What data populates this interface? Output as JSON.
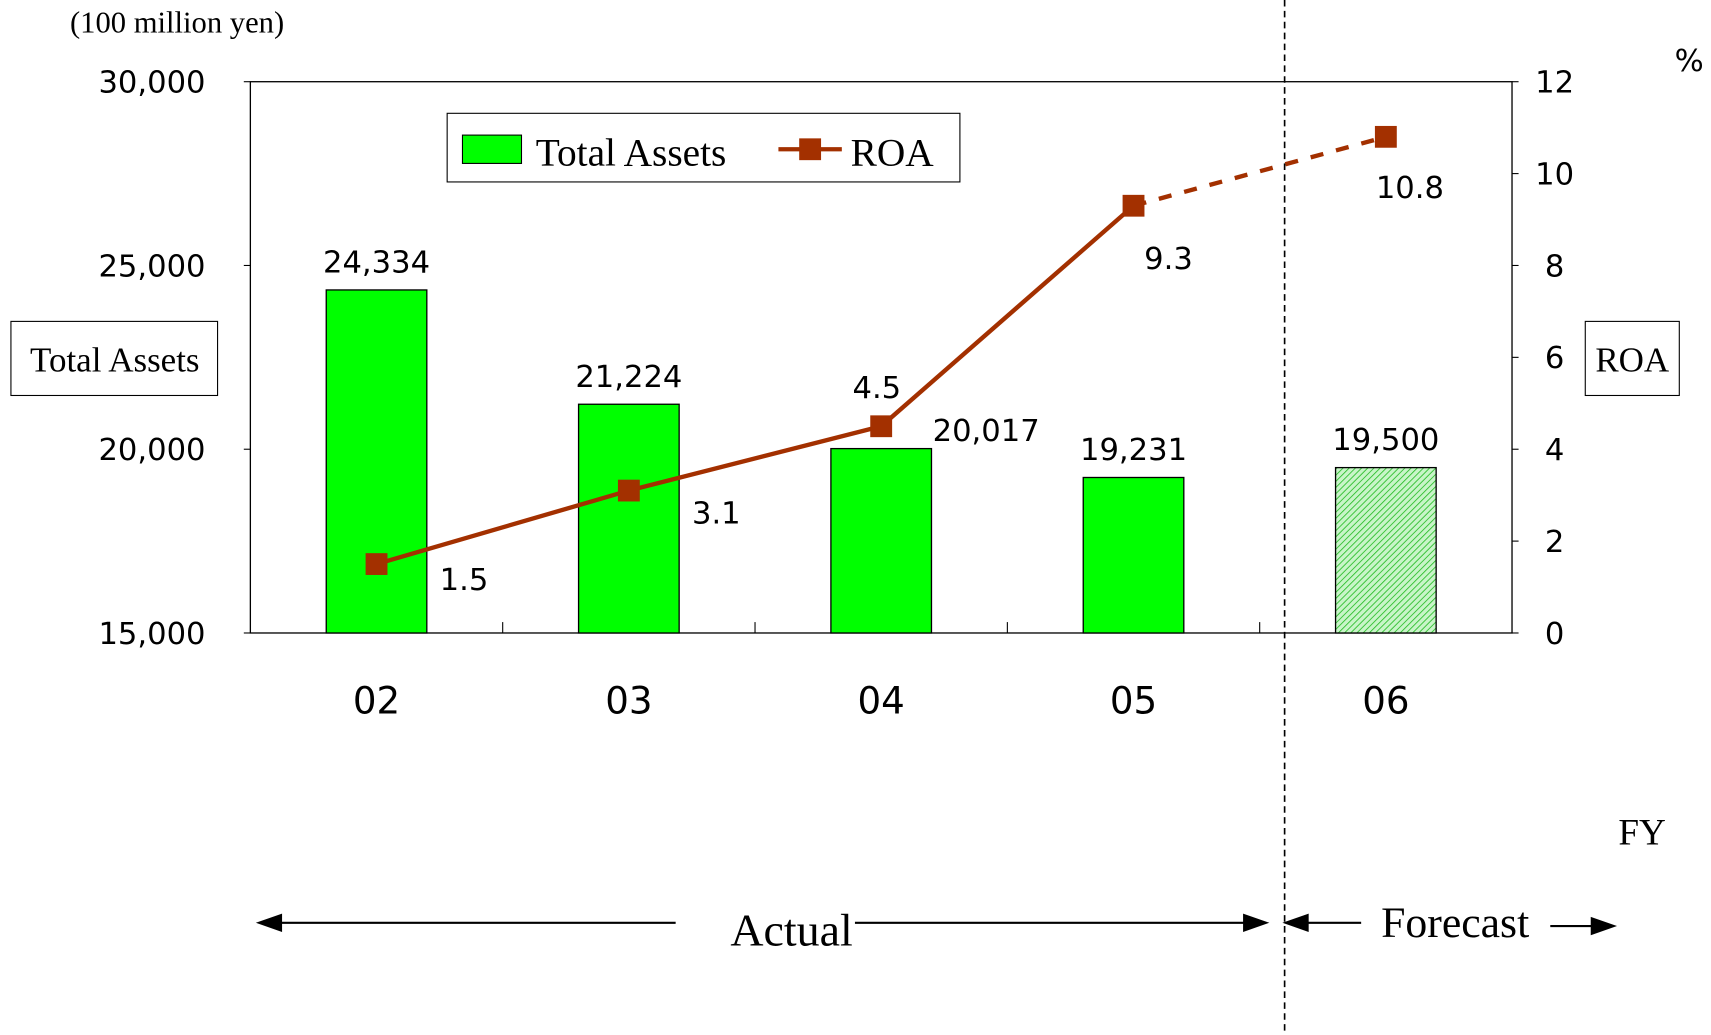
{
  "chart_data": {
    "type": "bar_line",
    "unit_label": "(100 million yen)",
    "ylabel": "Total Assets",
    "y2label": "ROA",
    "y2unit": "%",
    "xlabel": "FY",
    "annotations": [
      "Actual",
      "Forecast"
    ],
    "categories": [
      "02",
      "03",
      "04",
      "05",
      "06"
    ],
    "series": [
      {
        "name": "Total Assets",
        "type": "bar",
        "color": "#00ff00",
        "values": [
          24334,
          21224,
          20017,
          19231,
          19500
        ],
        "value_labels": [
          "24,334",
          "21,224",
          "20,017",
          "19,231",
          "19,500"
        ]
      },
      {
        "name": "ROA",
        "type": "line",
        "axis": "y2",
        "color": "#a33000",
        "values": [
          1.5,
          3.1,
          4.5,
          9.3,
          10.8
        ]
      }
    ],
    "ylim": [
      15000,
      30000
    ],
    "yticks": [
      {
        "value": 15000,
        "label": "15,000"
      },
      {
        "value": 20000,
        "label": "20,000"
      },
      {
        "value": 25000,
        "label": "25,000"
      },
      {
        "value": 30000,
        "label": "30,000"
      }
    ],
    "y2lim": [
      0,
      12
    ],
    "y2ticks": [
      0,
      2,
      4,
      6,
      8,
      10,
      12
    ],
    "grid": false
  }
}
